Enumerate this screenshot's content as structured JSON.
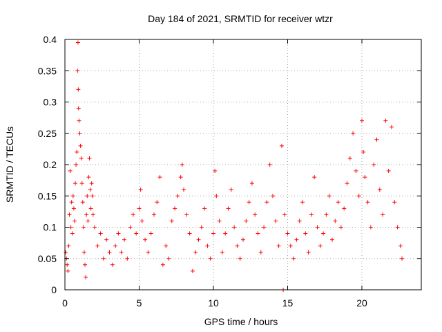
{
  "chart_data": {
    "type": "scatter",
    "title": "Day 184 of 2021, SRMTID for receiver wtzr",
    "xlabel": "GPS time / hours",
    "ylabel": "SRMTID / TECUs",
    "xlim": [
      0,
      24
    ],
    "ylim": [
      0,
      0.4
    ],
    "x_ticks": [
      0,
      5,
      10,
      15,
      20
    ],
    "x_tick_labels": [
      "0",
      "5",
      "10",
      "15",
      "20"
    ],
    "y_ticks": [
      0,
      0.05,
      0.1,
      0.15,
      0.2,
      0.25,
      0.3,
      0.35,
      0.4
    ],
    "y_tick_labels": [
      "0",
      "0.05",
      "0.1",
      "0.15",
      "0.2",
      "0.25",
      "0.3",
      "0.35",
      "0.4"
    ],
    "grid": true,
    "marker": "plus",
    "color": "#ff0000",
    "series": [
      {
        "name": "SRMTID",
        "points": [
          [
            0.05,
            0.06
          ],
          [
            0.1,
            0.05
          ],
          [
            0.15,
            0.04
          ],
          [
            0.2,
            0.03
          ],
          [
            0.25,
            0.07
          ],
          [
            0.3,
            0.12
          ],
          [
            0.35,
            0.19
          ],
          [
            0.4,
            0.1
          ],
          [
            0.45,
            0.14
          ],
          [
            0.5,
            0.09
          ],
          [
            0.55,
            0.15
          ],
          [
            0.6,
            0.13
          ],
          [
            0.65,
            0.11
          ],
          [
            0.7,
            0.17
          ],
          [
            0.75,
            0.2
          ],
          [
            0.8,
            0.22
          ],
          [
            0.85,
            0.35
          ],
          [
            0.88,
            0.395
          ],
          [
            0.9,
            0.32
          ],
          [
            0.92,
            0.29
          ],
          [
            0.95,
            0.27
          ],
          [
            1.0,
            0.25
          ],
          [
            1.05,
            0.23
          ],
          [
            1.1,
            0.21
          ],
          [
            1.15,
            0.17
          ],
          [
            1.2,
            0.14
          ],
          [
            1.25,
            0.1
          ],
          [
            1.3,
            0.06
          ],
          [
            1.35,
            0.04
          ],
          [
            1.4,
            0.02
          ],
          [
            1.45,
            0.12
          ],
          [
            1.5,
            0.15
          ],
          [
            1.55,
            0.11
          ],
          [
            1.6,
            0.18
          ],
          [
            1.65,
            0.21
          ],
          [
            1.7,
            0.16
          ],
          [
            1.75,
            0.13
          ],
          [
            1.8,
            0.17
          ],
          [
            1.85,
            0.15
          ],
          [
            1.9,
            0.12
          ],
          [
            2.0,
            0.1
          ],
          [
            2.2,
            0.07
          ],
          [
            2.4,
            0.09
          ],
          [
            2.6,
            0.05
          ],
          [
            2.8,
            0.08
          ],
          [
            3.0,
            0.06
          ],
          [
            3.2,
            0.04
          ],
          [
            3.4,
            0.07
          ],
          [
            3.6,
            0.09
          ],
          [
            3.8,
            0.06
          ],
          [
            4.0,
            0.08
          ],
          [
            4.2,
            0.05
          ],
          [
            4.4,
            0.1
          ],
          [
            4.6,
            0.12
          ],
          [
            4.8,
            0.09
          ],
          [
            5.0,
            0.13
          ],
          [
            5.1,
            0.16
          ],
          [
            5.2,
            0.11
          ],
          [
            5.4,
            0.08
          ],
          [
            5.6,
            0.06
          ],
          [
            5.8,
            0.09
          ],
          [
            6.0,
            0.12
          ],
          [
            6.2,
            0.14
          ],
          [
            6.4,
            0.18
          ],
          [
            6.6,
            0.04
          ],
          [
            6.8,
            0.07
          ],
          [
            7.0,
            0.05
          ],
          [
            7.2,
            0.11
          ],
          [
            7.4,
            0.13
          ],
          [
            7.6,
            0.15
          ],
          [
            7.8,
            0.18
          ],
          [
            7.9,
            0.2
          ],
          [
            8.0,
            0.16
          ],
          [
            8.2,
            0.12
          ],
          [
            8.4,
            0.09
          ],
          [
            8.6,
            0.03
          ],
          [
            8.8,
            0.06
          ],
          [
            9.0,
            0.08
          ],
          [
            9.2,
            0.1
          ],
          [
            9.4,
            0.13
          ],
          [
            9.6,
            0.07
          ],
          [
            9.8,
            0.05
          ],
          [
            10.0,
            0.09
          ],
          [
            10.1,
            0.19
          ],
          [
            10.2,
            0.15
          ],
          [
            10.4,
            0.11
          ],
          [
            10.6,
            0.06
          ],
          [
            10.8,
            0.09
          ],
          [
            11.0,
            0.13
          ],
          [
            11.2,
            0.16
          ],
          [
            11.4,
            0.1
          ],
          [
            11.6,
            0.07
          ],
          [
            11.8,
            0.05
          ],
          [
            12.0,
            0.08
          ],
          [
            12.2,
            0.11
          ],
          [
            12.4,
            0.14
          ],
          [
            12.6,
            0.17
          ],
          [
            12.8,
            0.12
          ],
          [
            13.0,
            0.09
          ],
          [
            13.2,
            0.06
          ],
          [
            13.4,
            0.1
          ],
          [
            13.6,
            0.14
          ],
          [
            13.8,
            0.2
          ],
          [
            14.0,
            0.15
          ],
          [
            14.2,
            0.11
          ],
          [
            14.4,
            0.07
          ],
          [
            14.6,
            0.23
          ],
          [
            14.7,
            0.0
          ],
          [
            14.8,
            0.12
          ],
          [
            15.0,
            0.09
          ],
          [
            15.2,
            0.07
          ],
          [
            15.4,
            0.05
          ],
          [
            15.6,
            0.08
          ],
          [
            15.8,
            0.11
          ],
          [
            16.0,
            0.14
          ],
          [
            16.2,
            0.09
          ],
          [
            16.4,
            0.06
          ],
          [
            16.6,
            0.12
          ],
          [
            16.8,
            0.18
          ],
          [
            17.0,
            0.1
          ],
          [
            17.2,
            0.07
          ],
          [
            17.4,
            0.09
          ],
          [
            17.6,
            0.12
          ],
          [
            17.8,
            0.15
          ],
          [
            18.0,
            0.08
          ],
          [
            18.2,
            0.11
          ],
          [
            18.4,
            0.14
          ],
          [
            18.6,
            0.1
          ],
          [
            18.8,
            0.13
          ],
          [
            19.0,
            0.17
          ],
          [
            19.2,
            0.21
          ],
          [
            19.4,
            0.25
          ],
          [
            19.6,
            0.19
          ],
          [
            19.8,
            0.15
          ],
          [
            20.0,
            0.27
          ],
          [
            20.1,
            0.22
          ],
          [
            20.2,
            0.18
          ],
          [
            20.4,
            0.14
          ],
          [
            20.6,
            0.1
          ],
          [
            20.8,
            0.2
          ],
          [
            21.0,
            0.24
          ],
          [
            21.2,
            0.16
          ],
          [
            21.4,
            0.12
          ],
          [
            21.6,
            0.27
          ],
          [
            21.8,
            0.19
          ],
          [
            22.0,
            0.26
          ],
          [
            22.2,
            0.14
          ],
          [
            22.4,
            0.1
          ],
          [
            22.6,
            0.07
          ],
          [
            22.7,
            0.05
          ]
        ]
      }
    ]
  }
}
